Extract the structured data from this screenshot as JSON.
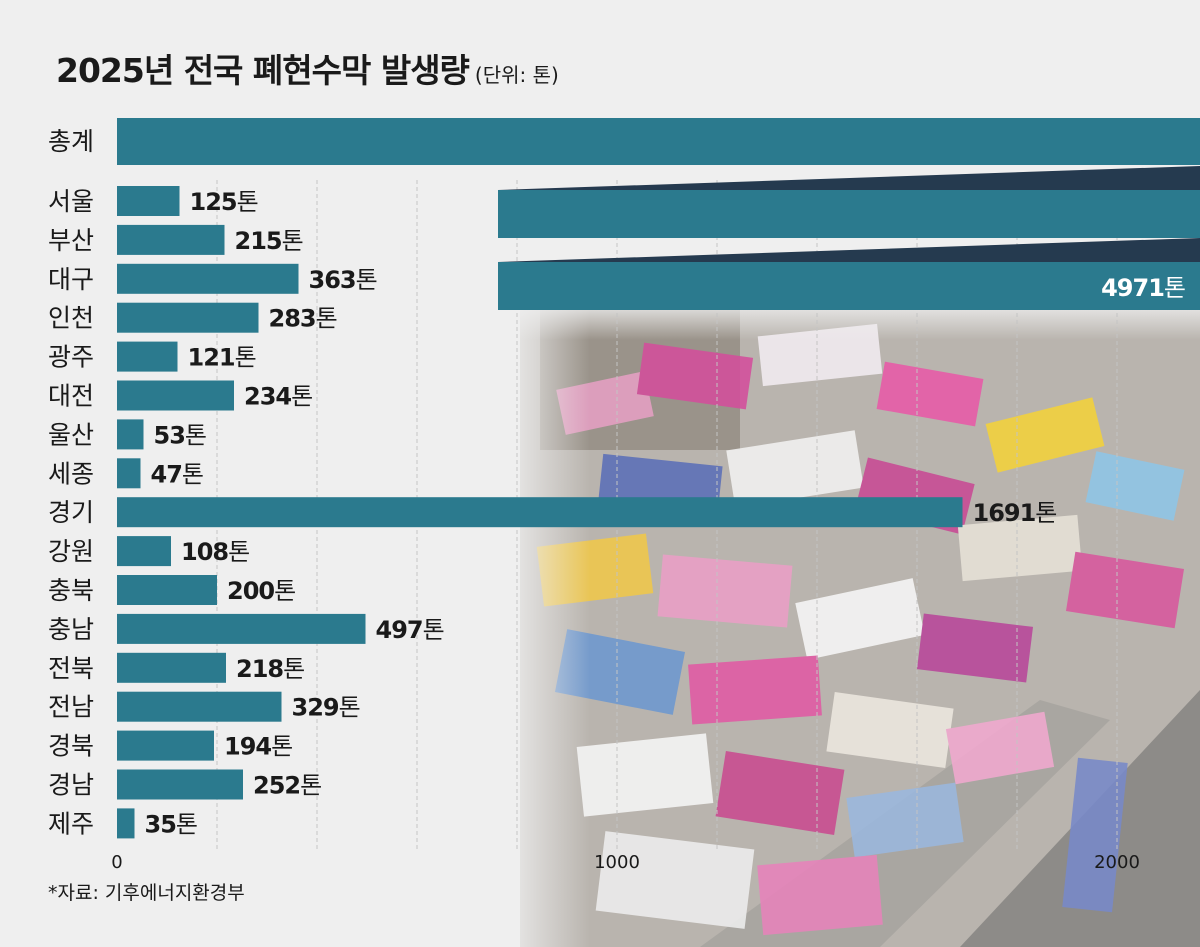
{
  "chart_data": {
    "type": "bar",
    "orientation": "horizontal",
    "title": "2025년 전국 폐현수막 발생량",
    "unit_note": "(단위: 톤)",
    "categories": [
      "총계",
      "서울",
      "부산",
      "대구",
      "인천",
      "광주",
      "대전",
      "울산",
      "세종",
      "경기",
      "강원",
      "충북",
      "충남",
      "전북",
      "전남",
      "경북",
      "경남",
      "제주"
    ],
    "values": [
      4971,
      125,
      215,
      363,
      283,
      121,
      234,
      53,
      47,
      1691,
      108,
      200,
      497,
      218,
      329,
      194,
      252,
      35
    ],
    "value_labels": [
      "4971",
      "125",
      "215",
      "363",
      "283",
      "121",
      "234",
      "53",
      "47",
      "1691",
      "108",
      "200",
      "497",
      "218",
      "329",
      "194",
      "252",
      "35"
    ],
    "value_suffix": "톤",
    "broken_bar": "총계",
    "x_ticks": [
      "0",
      "1000",
      "2000"
    ],
    "xlim": [
      0,
      2200
    ],
    "grid": "vertical dashed",
    "bar_color": "#2b7a8e",
    "break_color": "#253a4f"
  },
  "source": "*자료: 기후에너지환경부",
  "colors": {
    "bar": "#2b7a8e",
    "break": "#253a4f",
    "text": "#1a1a1a"
  }
}
